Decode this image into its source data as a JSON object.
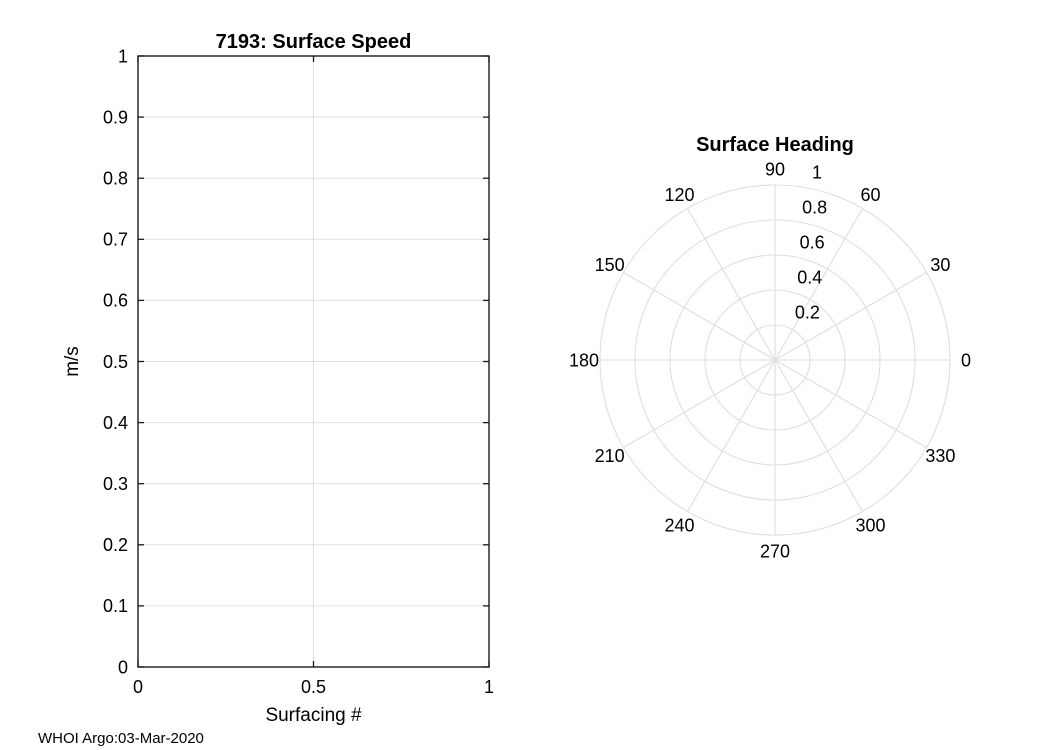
{
  "figure": {
    "footer": "WHOI Argo:03-Mar-2020"
  },
  "colors": {
    "background": "#ffffff",
    "axis": "#1a1a1a",
    "grid": "#e0e0e0",
    "polar_grid": "#dedede",
    "text": "#000000",
    "tick_text": "#1a1a1a"
  },
  "chart_data": [
    {
      "type": "line",
      "title": "7193: Surface Speed",
      "xlabel": "Surfacing #",
      "ylabel": "m/s",
      "xlim": [
        0,
        1
      ],
      "ylim": [
        0,
        1
      ],
      "xticks": [
        0,
        0.5,
        1
      ],
      "xtick_labels": [
        "0",
        "0.5",
        "1"
      ],
      "yticks": [
        0,
        0.1,
        0.2,
        0.3,
        0.4,
        0.5,
        0.6,
        0.7,
        0.8,
        0.9,
        1
      ],
      "ytick_labels": [
        "0",
        "0.1",
        "0.2",
        "0.3",
        "0.4",
        "0.5",
        "0.6",
        "0.7",
        "0.8",
        "0.9",
        "1"
      ],
      "grid": true,
      "box": true,
      "series": []
    },
    {
      "type": "polar",
      "title": "Surface Heading",
      "theta_ticks_deg": [
        0,
        30,
        60,
        90,
        120,
        150,
        180,
        210,
        240,
        270,
        300,
        330
      ],
      "theta_tick_labels": [
        "0",
        "30",
        "60",
        "90",
        "120",
        "150",
        "180",
        "210",
        "240",
        "270",
        "300",
        "330"
      ],
      "rticks": [
        0.2,
        0.4,
        0.6,
        0.8,
        1
      ],
      "rtick_labels": [
        "0.2",
        "0.4",
        "0.6",
        "0.8",
        "1"
      ],
      "rlim": [
        0,
        1
      ],
      "grid": true,
      "series": []
    }
  ]
}
